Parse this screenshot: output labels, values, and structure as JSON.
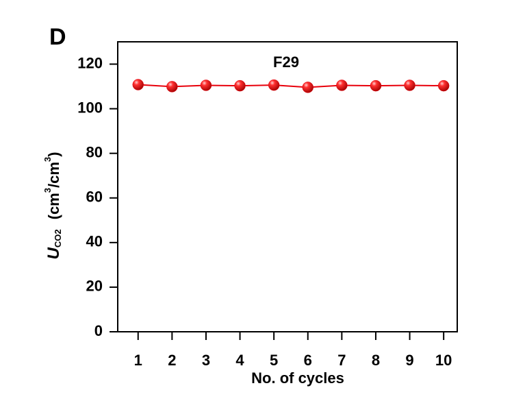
{
  "chart_data": {
    "type": "line",
    "panel_label": "D",
    "annotation": "F29",
    "x_label": "No. of cycles",
    "y_label": {
      "symbol": "U",
      "subscript": "CO2",
      "unit": [
        "(cm",
        "3",
        "/cm",
        "3",
        ")"
      ]
    },
    "x": [
      1,
      2,
      3,
      4,
      5,
      6,
      7,
      8,
      9,
      10
    ],
    "series": [
      {
        "name": "F29",
        "color": "#e8000b",
        "values": [
          110.8,
          109.9,
          110.5,
          110.3,
          110.6,
          109.6,
          110.5,
          110.3,
          110.5,
          110.3
        ]
      }
    ],
    "xlim": [
      0.4,
      10.4
    ],
    "xticks": [
      1,
      2,
      3,
      4,
      5,
      6,
      7,
      8,
      9,
      10
    ],
    "ylim": [
      0,
      130
    ],
    "yticks": [
      0,
      20,
      40,
      60,
      80,
      100,
      120
    ],
    "grid": false
  }
}
